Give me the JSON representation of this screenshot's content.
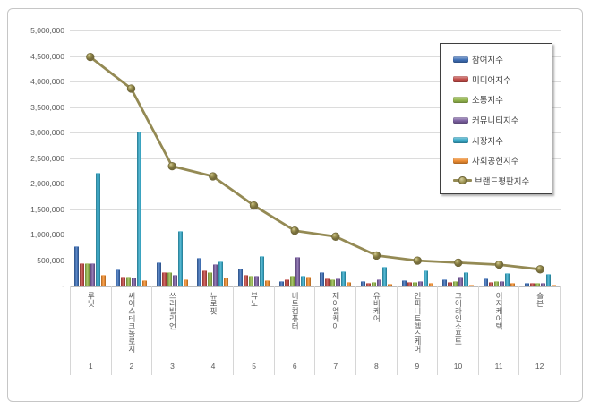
{
  "chart_data": {
    "type": "bar",
    "title": "",
    "xlabel": "",
    "ylabel": "",
    "categories": [
      "루닛",
      "씨어스테크놀로지",
      "쓰리빌리언",
      "뉴로핏",
      "뷰노",
      "비트컴퓨터",
      "제이엘케이",
      "유비케어",
      "인피니트헬스케어",
      "코어라인소프트",
      "이지케어텍",
      "솔본"
    ],
    "category_ranks": [
      "1",
      "2",
      "3",
      "4",
      "5",
      "6",
      "7",
      "8",
      "9",
      "10",
      "11",
      "12"
    ],
    "series": [
      {
        "name": "참여지수",
        "color": "#3f6fb5",
        "values": [
          780000,
          310000,
          460000,
          540000,
          340000,
          80000,
          260000,
          80000,
          110000,
          120000,
          140000,
          50000
        ]
      },
      {
        "name": "미디어지수",
        "color": "#bf4b47",
        "values": [
          430000,
          170000,
          260000,
          290000,
          210000,
          120000,
          140000,
          60000,
          70000,
          75000,
          75000,
          50000
        ]
      },
      {
        "name": "소통지수",
        "color": "#94b64e",
        "values": [
          430000,
          170000,
          270000,
          270000,
          195000,
          190000,
          130000,
          65000,
          75000,
          80000,
          85000,
          60000
        ]
      },
      {
        "name": "커뮤니티지수",
        "color": "#7c61a1",
        "values": [
          440000,
          155000,
          210000,
          420000,
          190000,
          570000,
          135000,
          130000,
          85000,
          180000,
          85000,
          50000
        ]
      },
      {
        "name": "시장지수",
        "color": "#38a7c5",
        "values": [
          2210000,
          3010000,
          1070000,
          480000,
          580000,
          200000,
          280000,
          370000,
          290000,
          270000,
          240000,
          230000
        ]
      },
      {
        "name": "사회공헌지수",
        "color": "#ec8c31",
        "values": [
          210000,
          100000,
          130000,
          160000,
          110000,
          180000,
          75000,
          30000,
          45000,
          20000,
          50000,
          15000
        ]
      }
    ],
    "line_series": {
      "name": "브랜드평판지수",
      "color": "#948a54",
      "values": [
        4480000,
        3860000,
        2340000,
        2140000,
        1570000,
        1075000,
        960000,
        590000,
        490000,
        450000,
        410000,
        320000
      ]
    },
    "ylim": [
      0,
      5000000
    ],
    "y_tick_interval": 500000,
    "y_tick_labels_top_to_bottom": [
      "5,000,000",
      "4,500,000",
      "4,000,000",
      "3,500,000",
      "3,000,000",
      "2,500,000",
      "2,000,000",
      "1,500,000",
      "1,000,000",
      "500,000",
      "-"
    ],
    "grid": true,
    "legend_position": "inside-top-right"
  },
  "colors": {
    "background": "#ffffff",
    "grid": "#dcdcdc",
    "axis": "#bdbdbd",
    "tick_text": "#595959",
    "frame_border": "#c6c6c6",
    "legend_border": "#3f3f3f"
  }
}
